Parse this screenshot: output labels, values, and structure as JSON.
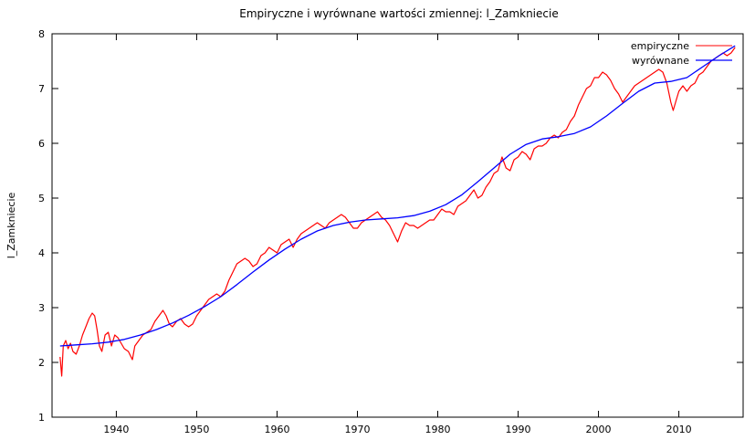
{
  "chart_data": {
    "type": "line",
    "title": "Empiryczne i wyrównane wartości zmiennej: l_Zamkniecie",
    "xlabel": "",
    "ylabel": "l_Zamkniecie",
    "xlim": [
      1932,
      2018
    ],
    "ylim": [
      1,
      8
    ],
    "xticks": [
      "1940",
      "1950",
      "1960",
      "1970",
      "1980",
      "1990",
      "2000",
      "2010"
    ],
    "yticks": [
      "1",
      "2",
      "3",
      "4",
      "5",
      "6",
      "7",
      "8"
    ],
    "legend_position": "top-right",
    "grid": false,
    "series": [
      {
        "name": "empiryczne",
        "color": "#ff0000",
        "x": [
          1933.0,
          1933.2,
          1933.4,
          1933.7,
          1934.0,
          1934.3,
          1934.6,
          1935.0,
          1935.4,
          1935.8,
          1936.2,
          1936.6,
          1937.0,
          1937.3,
          1937.6,
          1937.9,
          1938.2,
          1938.6,
          1939.0,
          1939.4,
          1939.8,
          1940.2,
          1940.6,
          1941.0,
          1941.5,
          1942.0,
          1942.3,
          1942.8,
          1943.3,
          1943.8,
          1944.3,
          1944.8,
          1945.3,
          1945.8,
          1946.2,
          1946.6,
          1947.0,
          1947.5,
          1948.0,
          1948.5,
          1949.0,
          1949.5,
          1950.0,
          1950.5,
          1951.0,
          1951.5,
          1952.0,
          1952.5,
          1953.0,
          1953.5,
          1954.0,
          1954.5,
          1955.0,
          1955.5,
          1956.0,
          1956.5,
          1957.0,
          1957.5,
          1958.0,
          1958.5,
          1959.0,
          1959.5,
          1960.0,
          1960.5,
          1961.0,
          1961.5,
          1962.0,
          1962.5,
          1963.0,
          1963.5,
          1964.0,
          1964.5,
          1965.0,
          1965.5,
          1966.0,
          1966.5,
          1967.0,
          1967.5,
          1968.0,
          1968.5,
          1969.0,
          1969.5,
          1970.0,
          1970.5,
          1971.0,
          1971.5,
          1972.0,
          1972.5,
          1973.0,
          1973.5,
          1974.0,
          1974.5,
          1975.0,
          1975.5,
          1976.0,
          1976.5,
          1977.0,
          1977.5,
          1978.0,
          1978.5,
          1979.0,
          1979.5,
          1980.0,
          1980.5,
          1981.0,
          1981.5,
          1982.0,
          1982.5,
          1983.0,
          1983.5,
          1984.0,
          1984.5,
          1985.0,
          1985.5,
          1986.0,
          1986.5,
          1987.0,
          1987.5,
          1988.0,
          1988.5,
          1989.0,
          1989.5,
          1990.0,
          1990.5,
          1991.0,
          1991.5,
          1992.0,
          1992.5,
          1993.0,
          1993.5,
          1994.0,
          1994.5,
          1995.0,
          1995.5,
          1996.0,
          1996.5,
          1997.0,
          1997.5,
          1998.0,
          1998.5,
          1999.0,
          1999.5,
          2000.0,
          2000.5,
          2001.0,
          2001.5,
          2002.0,
          2002.5,
          2003.0,
          2003.5,
          2004.0,
          2004.5,
          2005.0,
          2005.5,
          2006.0,
          2006.5,
          2007.0,
          2007.5,
          2008.0,
          2008.5,
          2009.0,
          2009.3,
          2009.7,
          2010.0,
          2010.5,
          2011.0,
          2011.5,
          2012.0,
          2012.5,
          2013.0,
          2013.5,
          2014.0,
          2014.5,
          2015.0,
          2015.5,
          2016.0,
          2016.5,
          2017.0
        ],
        "y": [
          2.1,
          1.75,
          2.3,
          2.4,
          2.25,
          2.35,
          2.2,
          2.15,
          2.3,
          2.5,
          2.65,
          2.8,
          2.9,
          2.85,
          2.6,
          2.3,
          2.2,
          2.5,
          2.55,
          2.3,
          2.5,
          2.45,
          2.35,
          2.25,
          2.2,
          2.05,
          2.3,
          2.4,
          2.5,
          2.55,
          2.6,
          2.75,
          2.85,
          2.95,
          2.85,
          2.7,
          2.65,
          2.75,
          2.8,
          2.7,
          2.65,
          2.7,
          2.85,
          2.95,
          3.05,
          3.15,
          3.2,
          3.25,
          3.2,
          3.3,
          3.5,
          3.65,
          3.8,
          3.85,
          3.9,
          3.85,
          3.75,
          3.8,
          3.95,
          4.0,
          4.1,
          4.05,
          4.0,
          4.15,
          4.2,
          4.25,
          4.1,
          4.25,
          4.35,
          4.4,
          4.45,
          4.5,
          4.55,
          4.5,
          4.45,
          4.55,
          4.6,
          4.65,
          4.7,
          4.65,
          4.55,
          4.45,
          4.45,
          4.55,
          4.6,
          4.65,
          4.7,
          4.75,
          4.65,
          4.6,
          4.5,
          4.35,
          4.2,
          4.4,
          4.55,
          4.5,
          4.5,
          4.45,
          4.5,
          4.55,
          4.6,
          4.6,
          4.7,
          4.8,
          4.75,
          4.75,
          4.7,
          4.85,
          4.9,
          4.95,
          5.05,
          5.15,
          5.0,
          5.05,
          5.2,
          5.3,
          5.45,
          5.5,
          5.75,
          5.55,
          5.5,
          5.7,
          5.75,
          5.85,
          5.8,
          5.7,
          5.9,
          5.95,
          5.95,
          6.0,
          6.1,
          6.15,
          6.1,
          6.2,
          6.25,
          6.4,
          6.5,
          6.7,
          6.85,
          7.0,
          7.05,
          7.2,
          7.2,
          7.3,
          7.25,
          7.15,
          7.0,
          6.9,
          6.75,
          6.85,
          6.95,
          7.05,
          7.1,
          7.15,
          7.2,
          7.25,
          7.3,
          7.35,
          7.3,
          7.1,
          6.75,
          6.6,
          6.8,
          6.95,
          7.05,
          6.95,
          7.05,
          7.1,
          7.25,
          7.3,
          7.4,
          7.5,
          7.55,
          7.6,
          7.65,
          7.6,
          7.65,
          7.75
        ]
      },
      {
        "name": "wyrównane",
        "color": "#0000ff",
        "x": [
          1933,
          1935,
          1937,
          1939,
          1941,
          1943,
          1945,
          1947,
          1949,
          1951,
          1953,
          1955,
          1957,
          1959,
          1961,
          1963,
          1965,
          1967,
          1969,
          1971,
          1973,
          1975,
          1977,
          1979,
          1981,
          1983,
          1985,
          1987,
          1989,
          1991,
          1993,
          1995,
          1997,
          1999,
          2001,
          2003,
          2005,
          2007,
          2009,
          2011,
          2013,
          2015,
          2017
        ],
        "y": [
          2.3,
          2.32,
          2.34,
          2.37,
          2.42,
          2.5,
          2.6,
          2.72,
          2.86,
          3.02,
          3.2,
          3.42,
          3.65,
          3.87,
          4.07,
          4.25,
          4.4,
          4.5,
          4.56,
          4.6,
          4.62,
          4.64,
          4.68,
          4.76,
          4.88,
          5.06,
          5.3,
          5.55,
          5.8,
          5.98,
          6.08,
          6.12,
          6.18,
          6.3,
          6.5,
          6.73,
          6.95,
          7.1,
          7.13,
          7.2,
          7.4,
          7.6,
          7.78
        ]
      }
    ]
  }
}
